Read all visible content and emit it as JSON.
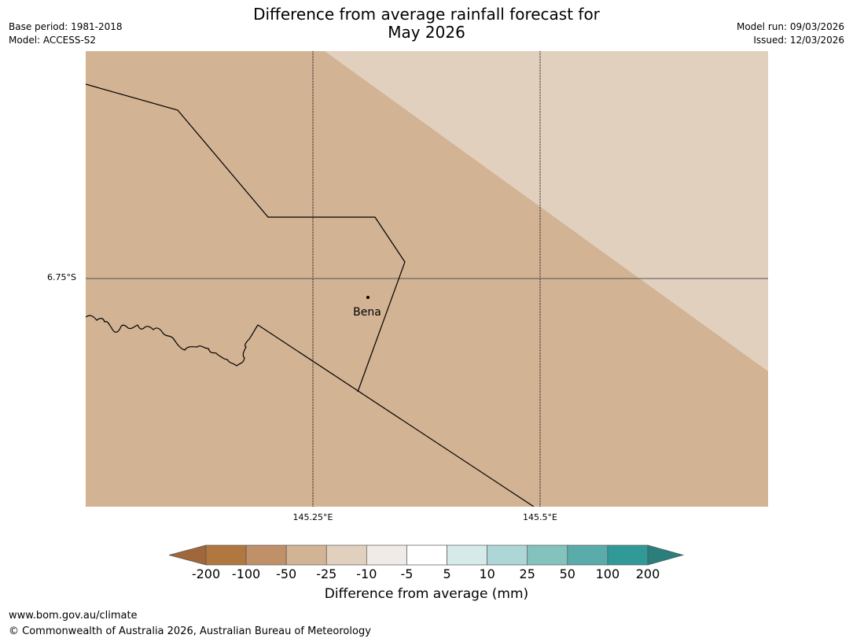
{
  "header": {
    "title_line1": "Difference from average rainfall forecast for",
    "title_line2": "May 2026",
    "base_period": "Base period: 1981-2018",
    "model": "Model: ACCESS-S2",
    "model_run": "Model run: 09/03/2026",
    "issued": "Issued: 12/03/2026"
  },
  "map": {
    "lat_labels": [
      "6.75°S"
    ],
    "lon_labels": [
      "145.25°E",
      "145.5°E"
    ],
    "place": {
      "name": "Bena"
    },
    "colors": {
      "base": "#d2b394",
      "light_band": "#e2d0bf"
    }
  },
  "legend": {
    "title": "Difference from average (mm)",
    "ticks": [
      "-200",
      "-100",
      "-50",
      "-25",
      "-10",
      "-5",
      "5",
      "10",
      "25",
      "50",
      "100",
      "200"
    ],
    "colors": [
      "#a0673a",
      "#b07840",
      "#c09068",
      "#d2b394",
      "#e2d0bf",
      "#f0ebe6",
      "#ffffff",
      "#d6eaea",
      "#add7d6",
      "#84c2be",
      "#5aacab",
      "#319a98",
      "#2a7f7c"
    ]
  },
  "footer": {
    "url": "www.bom.gov.au/climate",
    "copyright": "© Commonwealth of Australia 2026, Australian Bureau of Meteorology"
  }
}
